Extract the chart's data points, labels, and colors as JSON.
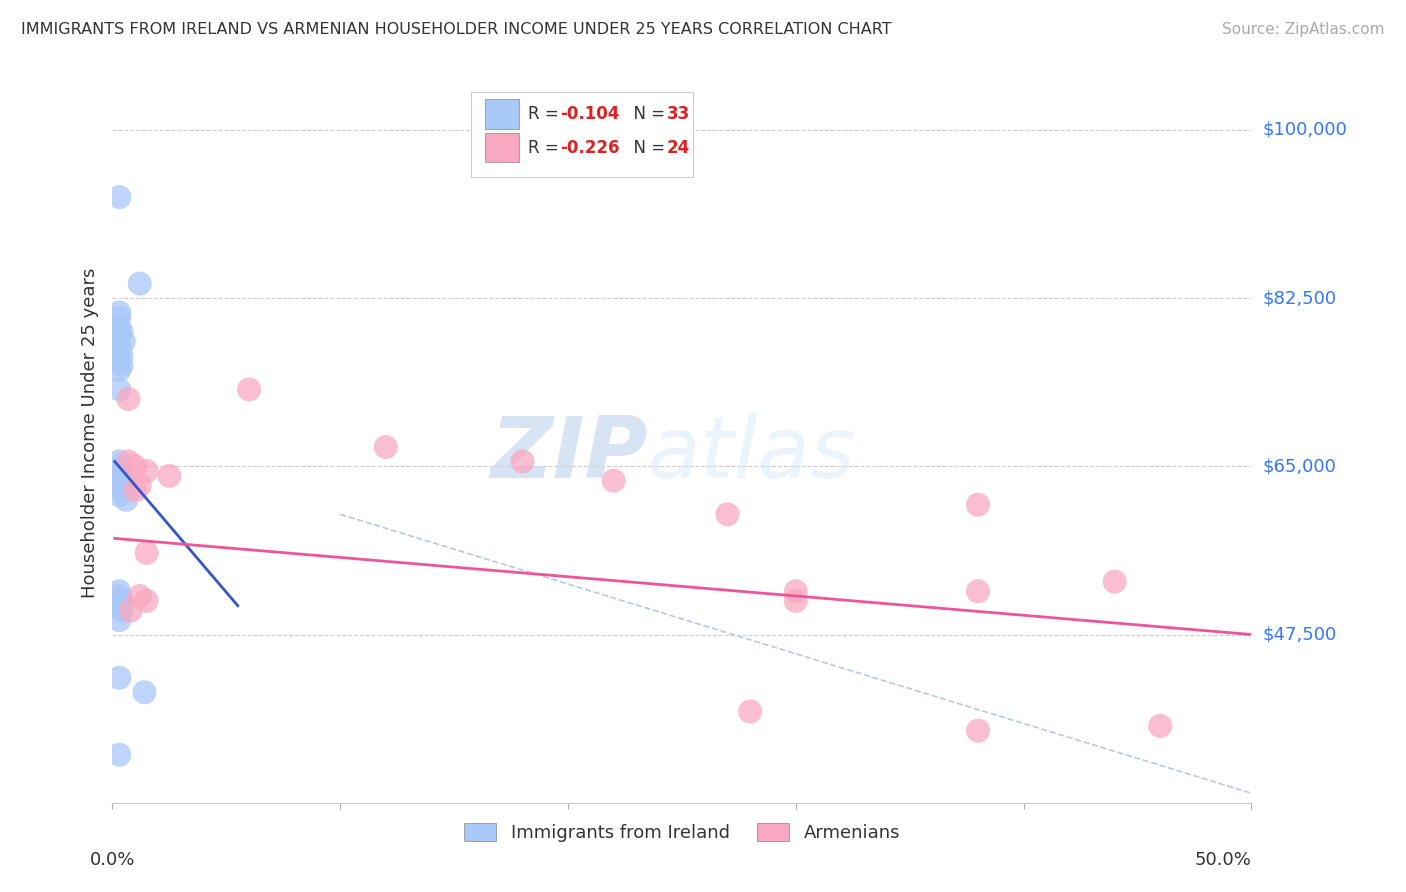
{
  "title": "IMMIGRANTS FROM IRELAND VS ARMENIAN HOUSEHOLDER INCOME UNDER 25 YEARS CORRELATION CHART",
  "source": "Source: ZipAtlas.com",
  "ylabel": "Householder Income Under 25 years",
  "ytick_labels": [
    "$47,500",
    "$65,000",
    "$82,500",
    "$100,000"
  ],
  "ytick_values": [
    47500,
    65000,
    82500,
    100000
  ],
  "xmin": 0.0,
  "xmax": 0.5,
  "ymin": 30000,
  "ymax": 107000,
  "watermark_zip": "ZIP",
  "watermark_atlas": "atlas",
  "ireland_color": "#a8c8f8",
  "armenian_color": "#f8a8c0",
  "ireland_line_color": "#3355cc",
  "armenian_line_color": "#ee5599",
  "dashed_line_color": "#b8c8e8",
  "ireland_line": [
    [
      0.001,
      65500
    ],
    [
      0.055,
      50500
    ]
  ],
  "armenian_line": [
    [
      0.001,
      57500
    ],
    [
      0.5,
      47500
    ]
  ],
  "dashed_line": [
    [
      0.1,
      60000
    ],
    [
      0.5,
      31000
    ]
  ],
  "ireland_scatter": [
    [
      0.003,
      93000
    ],
    [
      0.012,
      84000
    ],
    [
      0.003,
      81000
    ],
    [
      0.003,
      80500
    ],
    [
      0.003,
      79500
    ],
    [
      0.004,
      79000
    ],
    [
      0.003,
      78500
    ],
    [
      0.005,
      78000
    ],
    [
      0.003,
      77500
    ],
    [
      0.003,
      77000
    ],
    [
      0.004,
      76500
    ],
    [
      0.003,
      76000
    ],
    [
      0.004,
      75500
    ],
    [
      0.003,
      75000
    ],
    [
      0.003,
      73000
    ],
    [
      0.003,
      65500
    ],
    [
      0.003,
      65000
    ],
    [
      0.004,
      64500
    ],
    [
      0.004,
      64000
    ],
    [
      0.005,
      63500
    ],
    [
      0.003,
      63000
    ],
    [
      0.004,
      62500
    ],
    [
      0.003,
      62000
    ],
    [
      0.006,
      61500
    ],
    [
      0.003,
      52000
    ],
    [
      0.003,
      51500
    ],
    [
      0.004,
      51000
    ],
    [
      0.003,
      50500
    ],
    [
      0.004,
      50000
    ],
    [
      0.003,
      49000
    ],
    [
      0.003,
      43000
    ],
    [
      0.014,
      41500
    ],
    [
      0.003,
      35000
    ]
  ],
  "armenian_scatter": [
    [
      0.007,
      72000
    ],
    [
      0.007,
      65500
    ],
    [
      0.01,
      65000
    ],
    [
      0.015,
      64500
    ],
    [
      0.025,
      64000
    ],
    [
      0.012,
      63000
    ],
    [
      0.01,
      62500
    ],
    [
      0.015,
      56000
    ],
    [
      0.012,
      51500
    ],
    [
      0.015,
      51000
    ],
    [
      0.008,
      50000
    ],
    [
      0.06,
      73000
    ],
    [
      0.12,
      67000
    ],
    [
      0.18,
      65500
    ],
    [
      0.22,
      63500
    ],
    [
      0.27,
      60000
    ],
    [
      0.3,
      52000
    ],
    [
      0.3,
      51000
    ],
    [
      0.38,
      61000
    ],
    [
      0.38,
      52000
    ],
    [
      0.44,
      53000
    ],
    [
      0.28,
      39500
    ],
    [
      0.38,
      37500
    ],
    [
      0.46,
      38000
    ]
  ],
  "legend_r1": "R = ",
  "legend_v1": "-0.104",
  "legend_n1_label": "N = ",
  "legend_n1_val": "33",
  "legend_r2": "R = ",
  "legend_v2": "-0.226",
  "legend_n2_label": "N = ",
  "legend_n2_val": "24"
}
